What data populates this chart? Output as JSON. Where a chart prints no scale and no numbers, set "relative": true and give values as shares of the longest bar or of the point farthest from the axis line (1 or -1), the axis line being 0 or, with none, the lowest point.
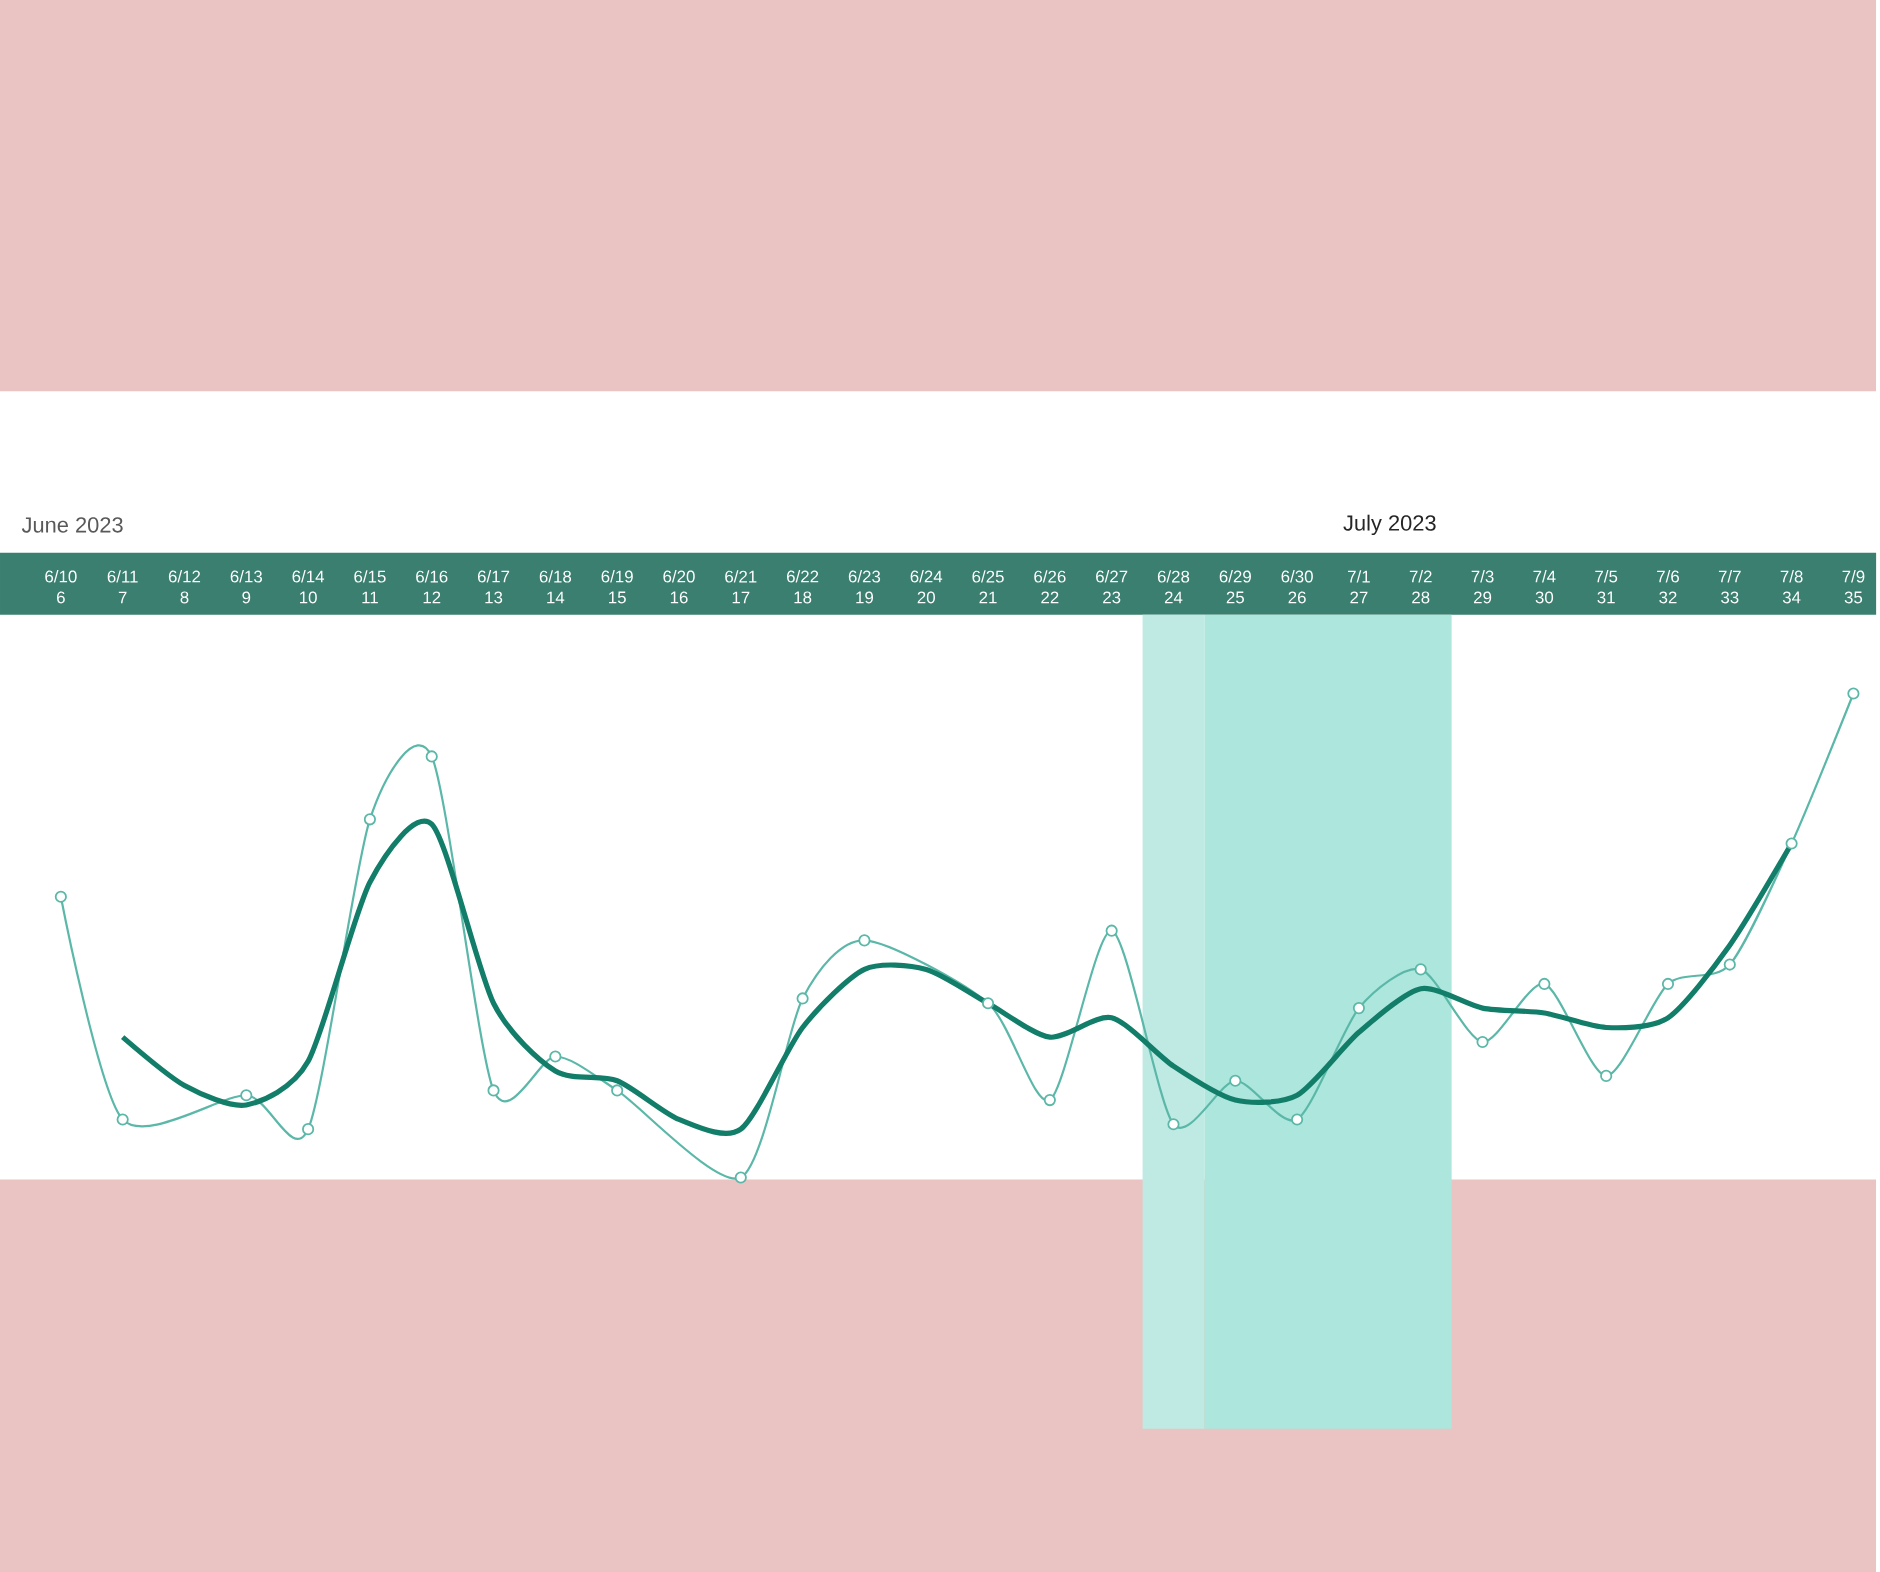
{
  "chart_data": {
    "type": "line",
    "relative": true,
    "categories": [
      "6/10 6",
      "6/11 7",
      "6/12 8",
      "6/13 9",
      "6/14 10",
      "6/15 11",
      "6/16 12",
      "6/17 13",
      "6/18 14",
      "6/19 15",
      "6/20 16",
      "6/21 17",
      "6/22 18",
      "6/23 19",
      "6/24 20",
      "6/25 21",
      "6/26 22",
      "6/27 23",
      "6/28 24",
      "6/29 25",
      "6/30 26",
      "7/1 27",
      "7/2 28",
      "7/3 29",
      "7/4 30",
      "7/5 31",
      "7/6 32",
      "7/7 33",
      "7/8 34",
      "7/9 35"
    ],
    "series": [
      {
        "color": "#5bb8a8",
        "marker": "circle",
        "line_style": "solid",
        "values": [
          0.58,
          0.12,
          null,
          0.17,
          0.1,
          0.74,
          0.87,
          0.18,
          0.25,
          0.18,
          null,
          0,
          0.37,
          0.49,
          null,
          0.36,
          0.16,
          0.51,
          0.11,
          0.2,
          0.12,
          0.35,
          0.43,
          0.28,
          0.4,
          0.21,
          0.4,
          0.44,
          0.69,
          1
        ]
      },
      {
        "color": "#127d69",
        "marker": "none",
        "line_style": "solid",
        "values": [
          null,
          0.29,
          0.19,
          0.15,
          0.24,
          0.61,
          0.73,
          0.36,
          0.22,
          0.2,
          0.12,
          0.1,
          0.31,
          0.43,
          0.43,
          0.36,
          0.29,
          0.33,
          0.23,
          0.16,
          0.17,
          0.3,
          0.39,
          0.35,
          0.34,
          0.31,
          0.33,
          0.48,
          0.69,
          null
        ]
      }
    ],
    "bands": [
      {
        "axis": "x",
        "from": "6/28 24",
        "to": "6/28 24",
        "color": "#bfeae3"
      },
      {
        "axis": "x",
        "from": "6/29 25",
        "to": "7/2 28",
        "color": "#ade6dc"
      }
    ],
    "annotations": [
      "June 2023",
      "July 2023"
    ]
  }
}
